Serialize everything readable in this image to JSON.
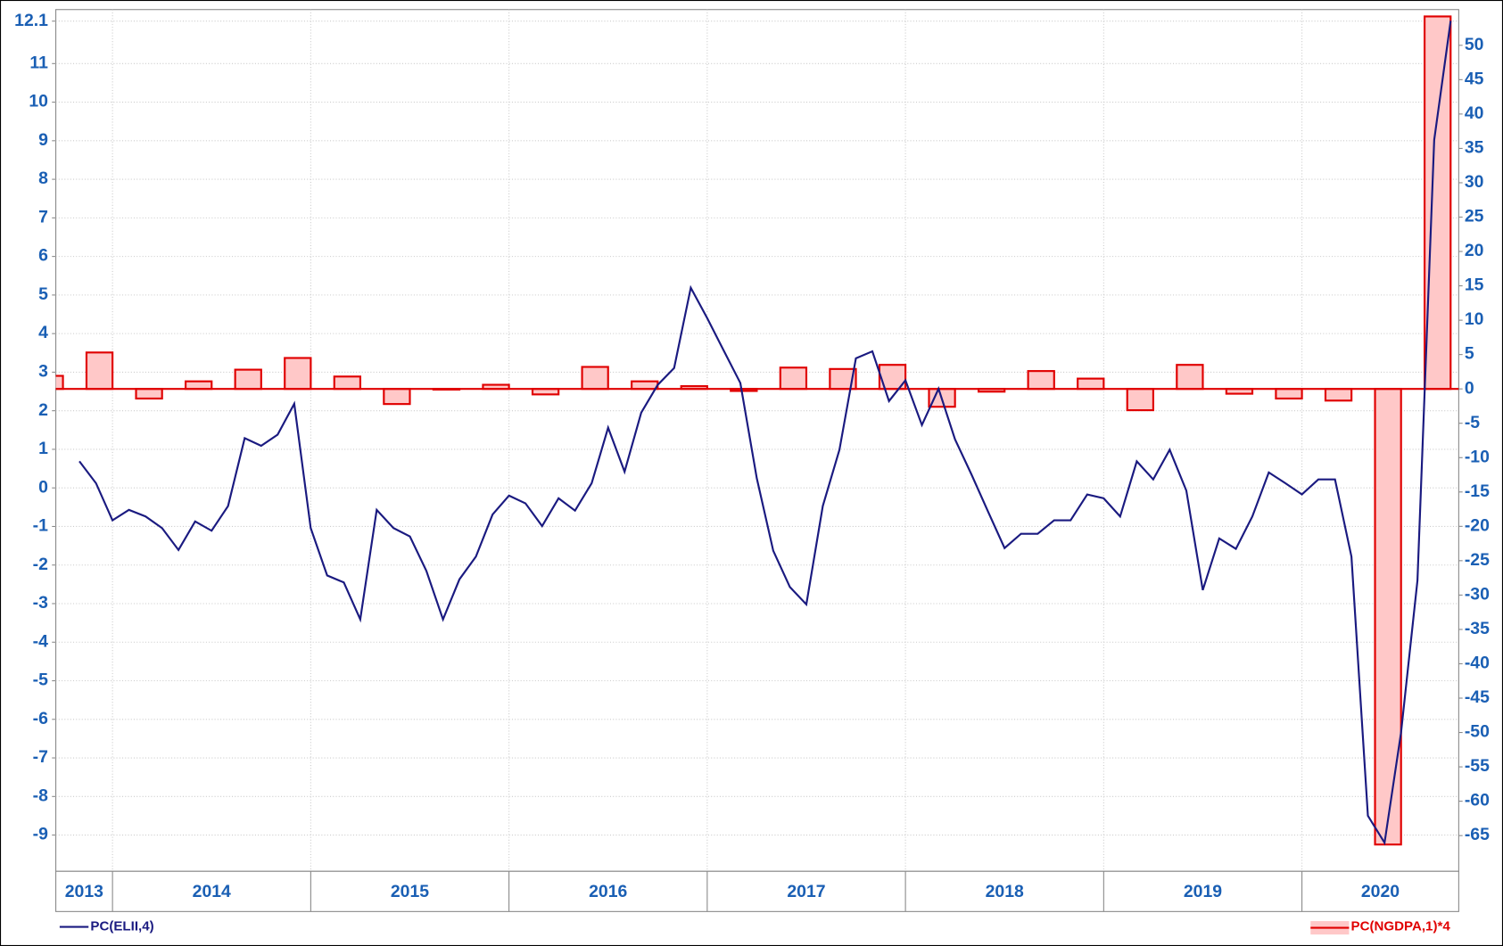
{
  "chart_data": {
    "type": "bar_line",
    "xlim": [
      2013.714,
      2020.791
    ],
    "xticks": [
      {
        "value": 2013,
        "label": "2013"
      },
      {
        "value": 2014,
        "label": "2014"
      },
      {
        "value": 2015,
        "label": "2015"
      },
      {
        "value": 2016,
        "label": "2016"
      },
      {
        "value": 2017,
        "label": "2017"
      },
      {
        "value": 2018,
        "label": "2018"
      },
      {
        "value": 2019,
        "label": "2019"
      },
      {
        "value": 2020,
        "label": "2020"
      }
    ],
    "ylim": [
      -9.94,
      12.4
    ],
    "yticks": [
      -9,
      -8,
      -7,
      -6,
      -5,
      -4,
      -3,
      -2,
      -1,
      0,
      1,
      2,
      3,
      4,
      5,
      6,
      7,
      8,
      9,
      10,
      11,
      12.1
    ],
    "y2lim": [
      -70.2,
      55.2
    ],
    "y2ticks": [
      -65,
      -60,
      -55,
      -50,
      -45,
      -40,
      -35,
      -30,
      -25,
      -20,
      -15,
      -10,
      -5,
      0,
      5,
      10,
      15,
      20,
      25,
      30,
      35,
      40,
      45,
      50
    ],
    "grid": true,
    "series": [
      {
        "name": "PC(ELII,4)",
        "type": "line",
        "axis": "y",
        "color": "#1a1a80",
        "x": [
          2013.833,
          2013.917,
          2014,
          2014.083,
          2014.167,
          2014.25,
          2014.333,
          2014.417,
          2014.5,
          2014.583,
          2014.667,
          2014.75,
          2014.833,
          2014.917,
          2015,
          2015.083,
          2015.167,
          2015.25,
          2015.333,
          2015.417,
          2015.5,
          2015.583,
          2015.667,
          2015.75,
          2015.833,
          2015.917,
          2016,
          2016.083,
          2016.167,
          2016.25,
          2016.333,
          2016.417,
          2016.5,
          2016.583,
          2016.667,
          2016.75,
          2016.833,
          2016.917,
          2017,
          2017.083,
          2017.167,
          2017.25,
          2017.333,
          2017.417,
          2017.5,
          2017.583,
          2017.667,
          2017.75,
          2017.833,
          2017.917,
          2018,
          2018.083,
          2018.167,
          2018.25,
          2018.333,
          2018.417,
          2018.5,
          2018.583,
          2018.667,
          2018.75,
          2018.833,
          2018.917,
          2019,
          2019.083,
          2019.167,
          2019.25,
          2019.333,
          2019.417,
          2019.5,
          2019.583,
          2019.667,
          2019.75,
          2019.833,
          2019.917,
          2020,
          2020.083,
          2020.167,
          2020.25,
          2020.333,
          2020.417,
          2020.5,
          2020.583,
          2020.667,
          2020.75
        ],
        "values": [
          0.69,
          0.12,
          -0.84,
          -0.57,
          -0.74,
          -1.04,
          -1.61,
          -0.87,
          -1.11,
          -0.47,
          1.29,
          1.09,
          1.38,
          2.18,
          -1.04,
          -2.27,
          -2.45,
          -3.41,
          -0.57,
          -1.04,
          -1.26,
          -2.15,
          -3.41,
          -2.37,
          -1.78,
          -0.69,
          -0.2,
          -0.4,
          -0.99,
          -0.27,
          -0.59,
          0.12,
          1.56,
          0.42,
          1.95,
          2.67,
          3.11,
          5.19,
          4.4,
          3.56,
          2.72,
          0.25,
          -1.63,
          -2.57,
          -3.02,
          -0.47,
          0.99,
          3.36,
          3.54,
          2.25,
          2.79,
          1.63,
          2.57,
          1.26,
          0.35,
          -0.62,
          -1.56,
          -1.19,
          -1.19,
          -0.84,
          -0.84,
          -0.17,
          -0.27,
          -0.74,
          0.69,
          0.22,
          0.99,
          -0.07,
          -2.65,
          -1.31,
          -1.58,
          -0.74,
          0.4,
          0.12,
          -0.17,
          0.22,
          0.22,
          -1.78,
          -8.5,
          -9.2,
          -6.35,
          -2.4,
          9.02,
          12.11
        ]
      },
      {
        "name": "PC(NGDPA,1)*4",
        "type": "bar",
        "axis": "y2",
        "color": "#ffc8c8",
        "edge_color": "#e00000",
        "x": [
          2013.75,
          2014,
          2014.25,
          2014.5,
          2014.75,
          2015,
          2015.25,
          2015.5,
          2015.75,
          2016,
          2016.25,
          2016.5,
          2016.75,
          2017,
          2017.25,
          2017.5,
          2017.75,
          2018,
          2018.25,
          2018.5,
          2018.75,
          2019,
          2019.25,
          2019.5,
          2019.75,
          2020,
          2020.25,
          2020.5,
          2020.75
        ],
        "values": [
          1.9,
          5.3,
          -1.4,
          1.1,
          2.8,
          4.5,
          1.8,
          -2.2,
          -0.1,
          0.6,
          -0.8,
          3.2,
          1.1,
          0.4,
          -0.3,
          3.1,
          2.9,
          3.5,
          -2.6,
          -0.4,
          2.6,
          1.5,
          -3.1,
          3.5,
          -0.7,
          -1.4,
          -1.7,
          -66.3,
          54.2
        ]
      }
    ]
  }
}
